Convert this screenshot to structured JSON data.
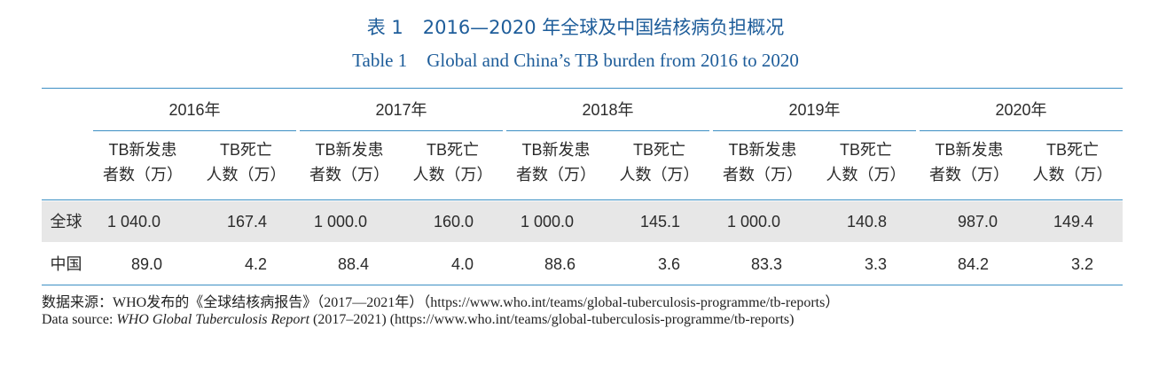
{
  "title": {
    "cn_number": "表 1",
    "cn_text": "2016—2020 年全球及中国结核病负担概况",
    "en_number": "Table 1",
    "en_text": "Global and China’s TB burden from 2016 to 2020"
  },
  "chart_data": {
    "type": "table",
    "years": [
      "2016年",
      "2017年",
      "2018年",
      "2019年",
      "2020年"
    ],
    "sub_headers": [
      {
        "line1": "TB新发患",
        "line2": "者数（万）"
      },
      {
        "line1": "TB死亡",
        "line2": "人数（万）"
      }
    ],
    "rows": [
      {
        "label": "全球",
        "values": [
          "1 040.0",
          "167.4",
          "1 000.0",
          "160.0",
          "1 000.0",
          "145.1",
          "1 000.0",
          "140.8",
          "987.0",
          "149.4"
        ]
      },
      {
        "label": "中国",
        "values": [
          "89.0",
          "4.2",
          "88.4",
          "4.0",
          "88.6",
          "3.6",
          "83.3",
          "3.3",
          "84.2",
          "3.2"
        ]
      }
    ]
  },
  "notes": {
    "cn": "数据来源：WHO发布的《全球结核病报告》（2017—2021年）（https://www.who.int/teams/global-tuberculosis-programme/tb-reports）",
    "en_prefix": "Data source: ",
    "en_italic": "WHO Global Tuberculosis Report",
    "en_suffix": " (2017–2021) (https://www.who.int/teams/global-tuberculosis-programme/tb-reports)"
  },
  "colors": {
    "title": "#1e5d9a",
    "rule": "#3c8fc4",
    "band": "#e7e7e7"
  }
}
